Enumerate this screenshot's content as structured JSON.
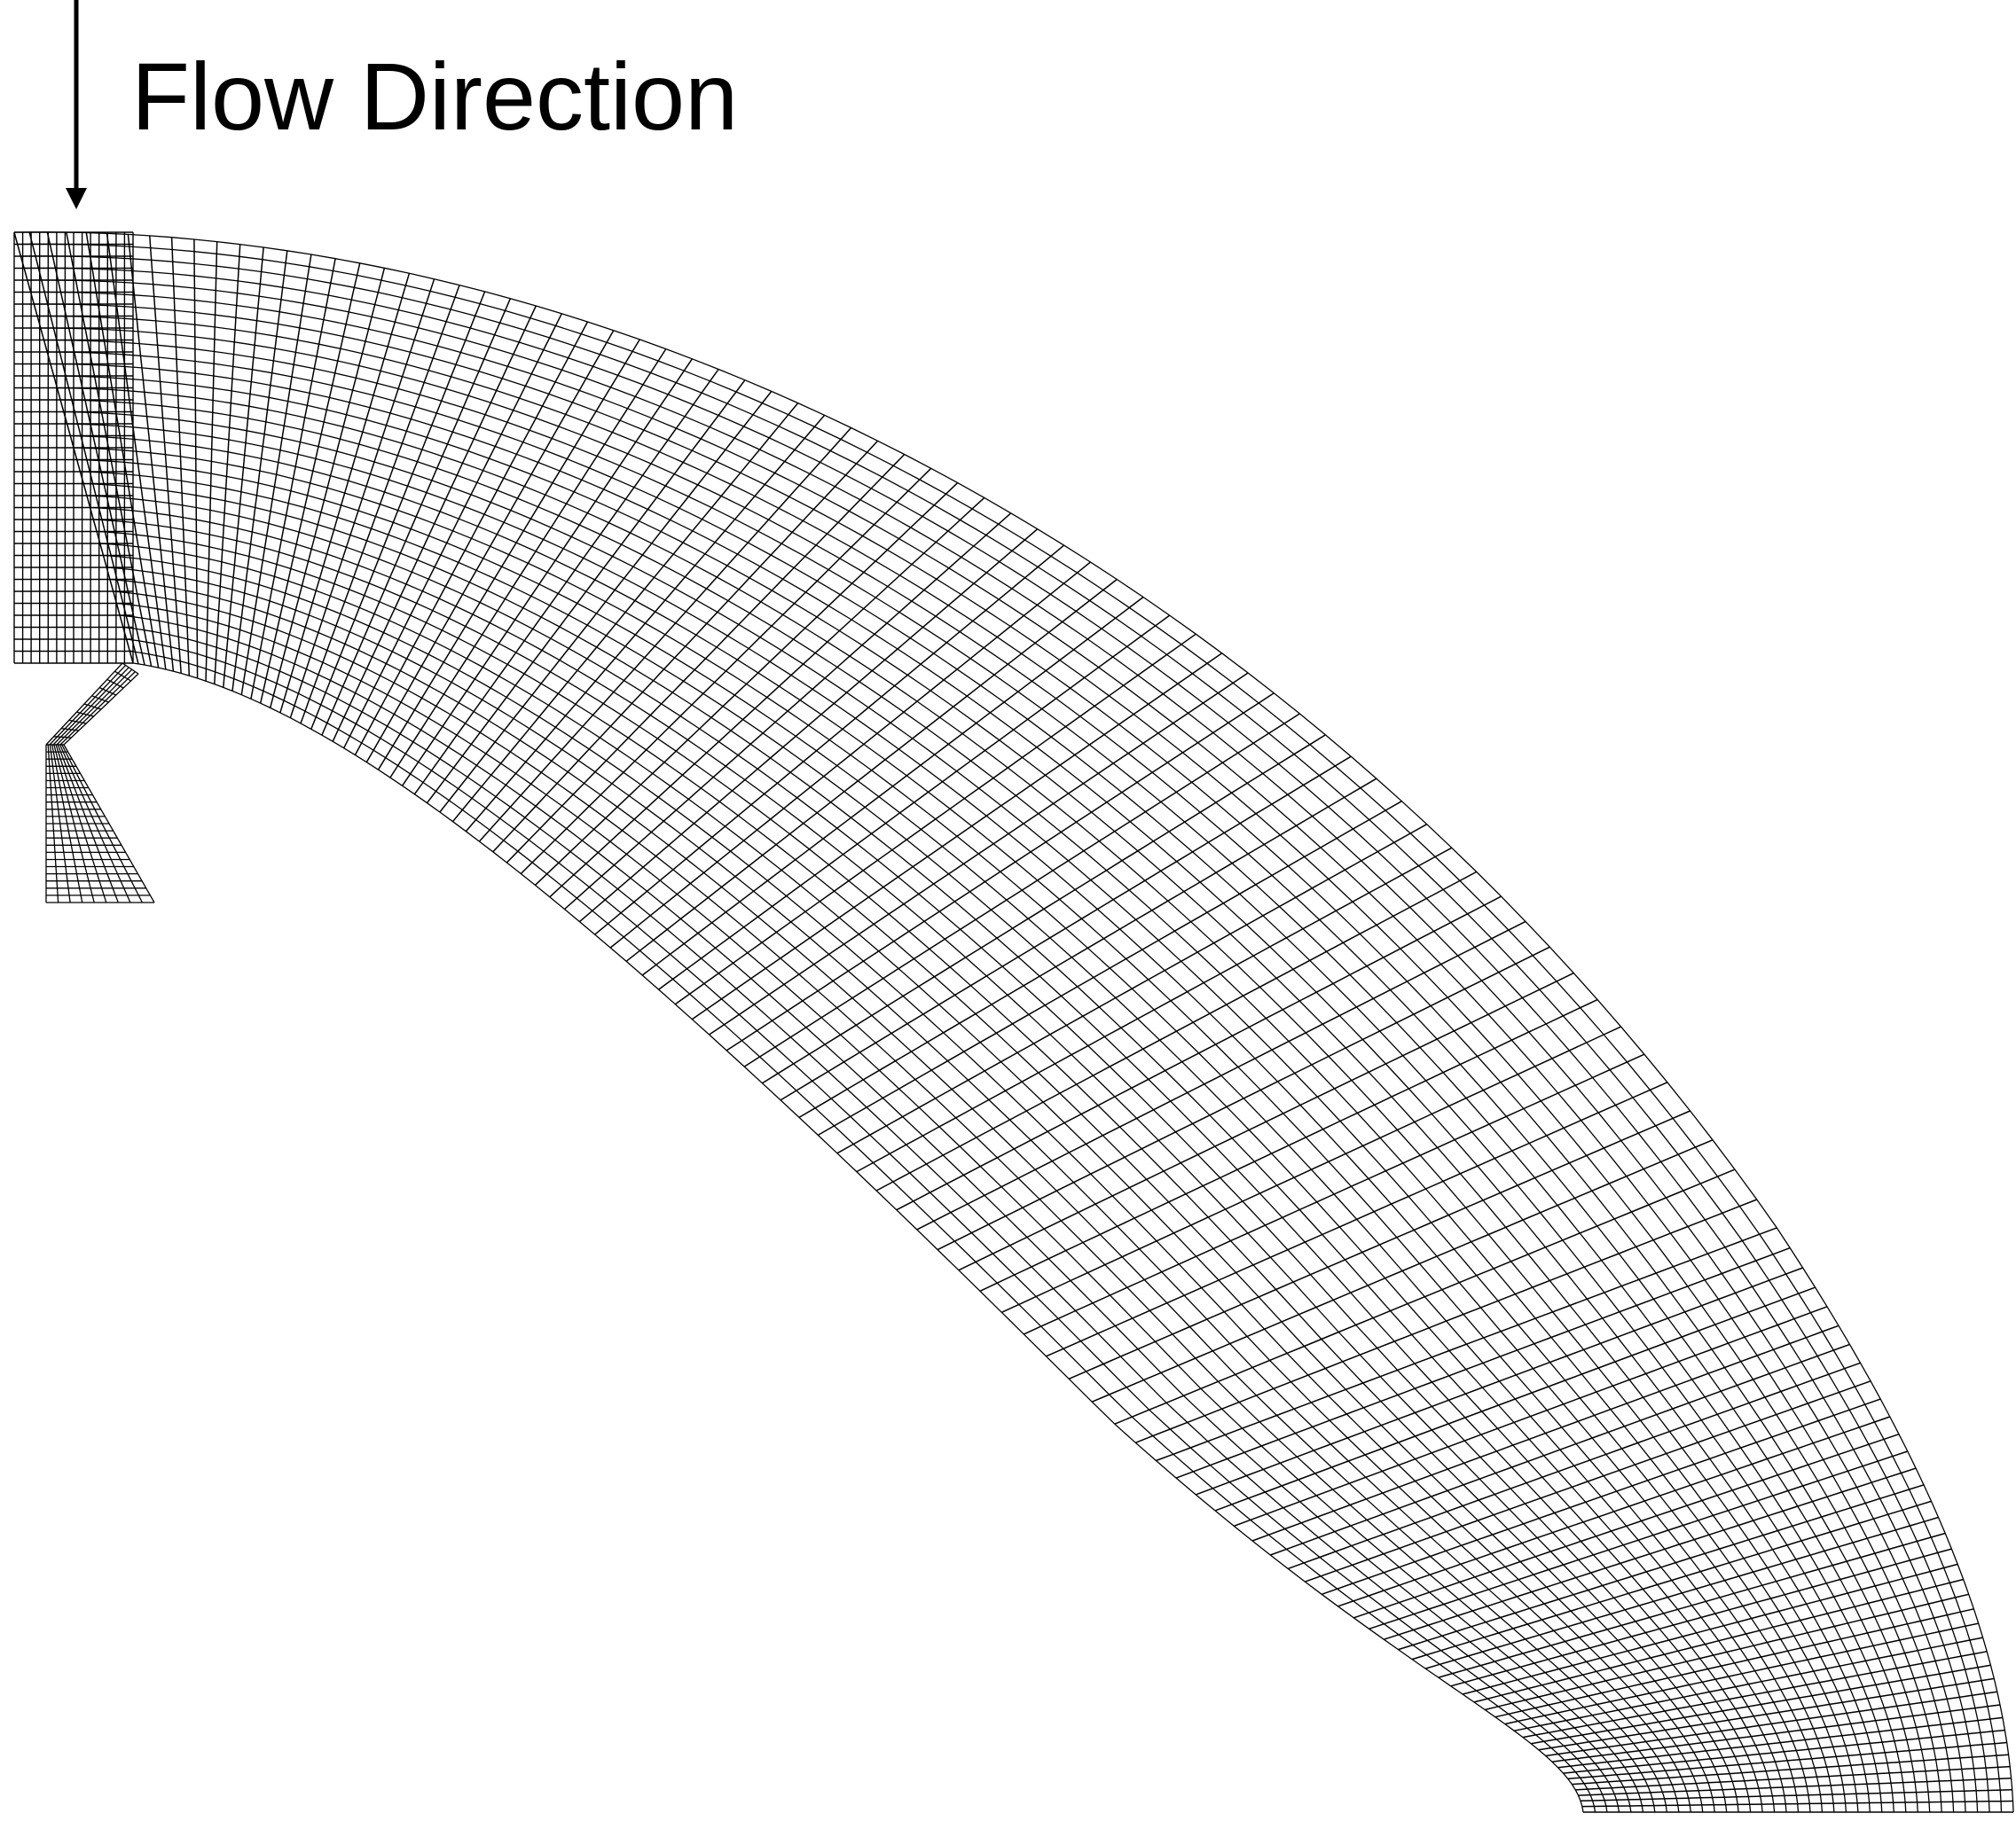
{
  "diagram": {
    "label": "Flow Direction",
    "line_color": "#000000",
    "background": "#ffffff",
    "arrow_icon": "down-arrow-icon"
  }
}
